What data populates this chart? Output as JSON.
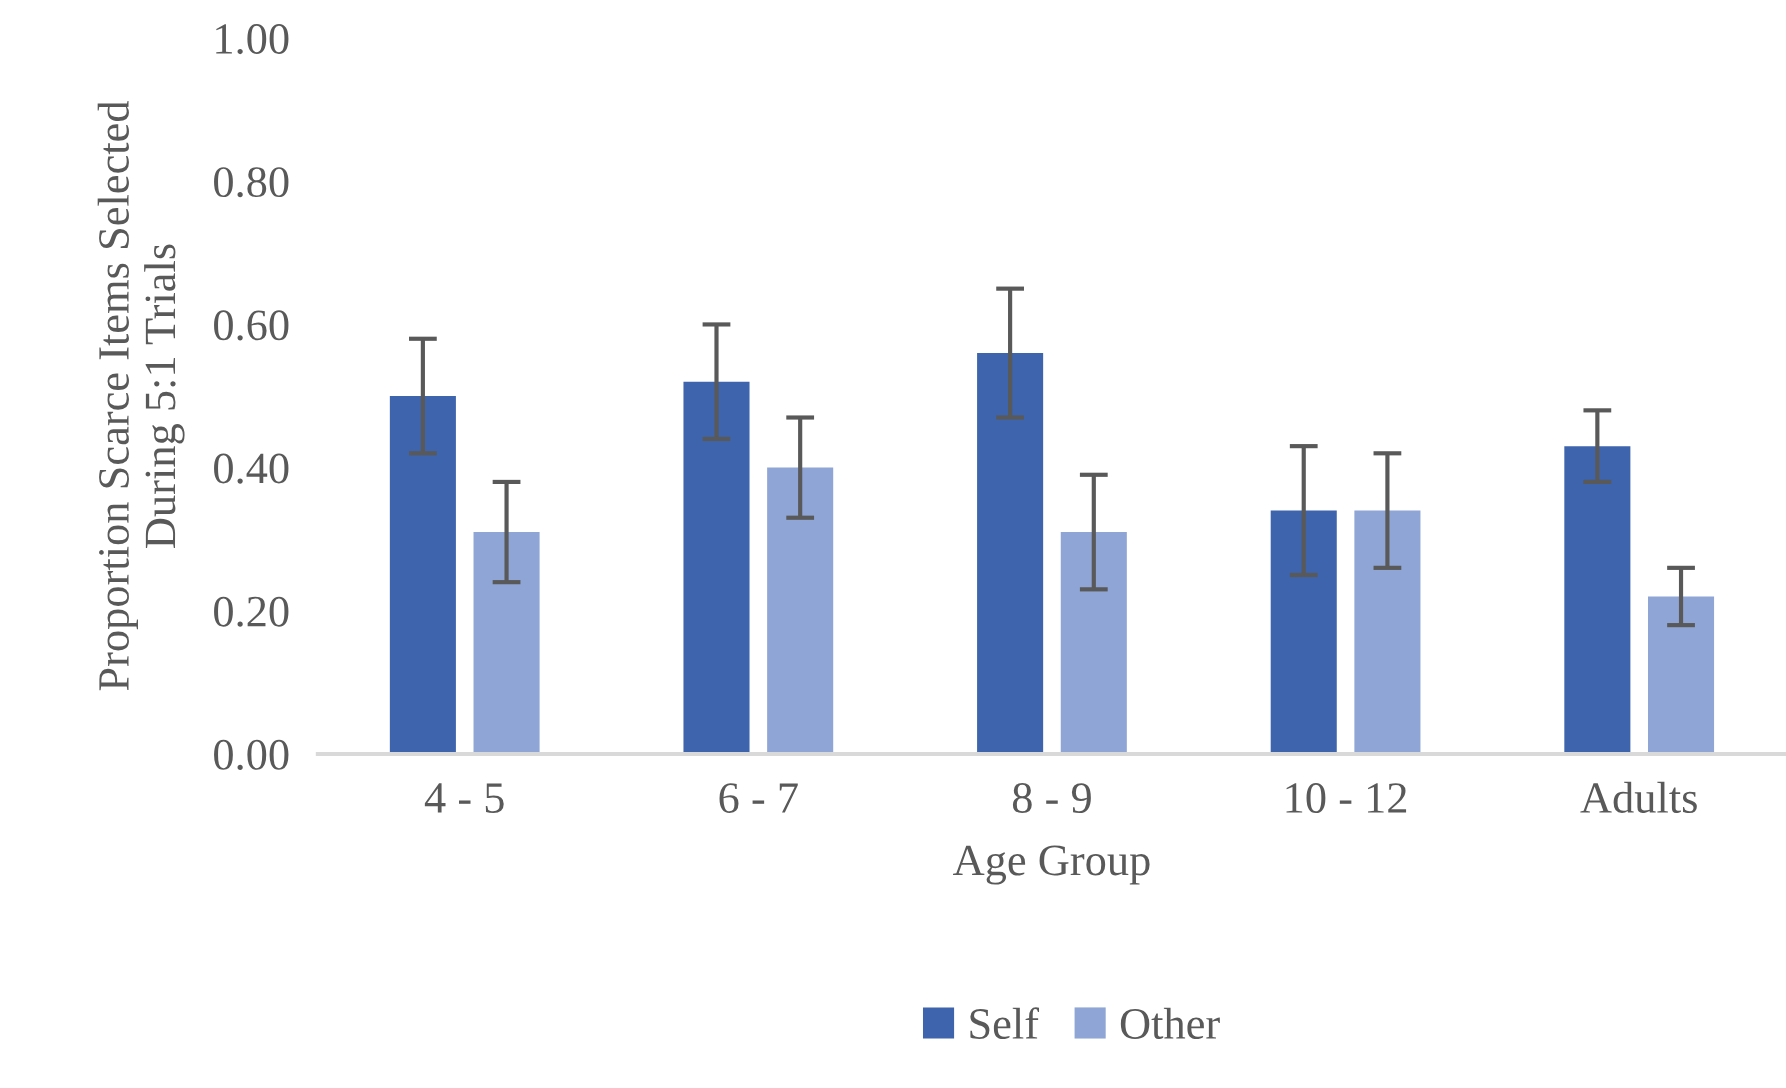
{
  "chart_data": {
    "type": "bar",
    "xlabel": "Age Group",
    "ylabel": "Proportion Scarce Items Selected\nDuring 5:1 Trials",
    "categories": [
      "4 - 5",
      "6 - 7",
      "8 - 9",
      "10 - 12",
      "Adults"
    ],
    "series": [
      {
        "name": "Self",
        "color": "#3d64ac",
        "values": [
          0.5,
          0.52,
          0.56,
          0.34,
          0.43
        ],
        "errors": [
          0.08,
          0.08,
          0.09,
          0.09,
          0.05
        ]
      },
      {
        "name": "Other",
        "color": "#8fa5d5",
        "values": [
          0.31,
          0.4,
          0.31,
          0.34,
          0.22
        ],
        "errors": [
          0.07,
          0.07,
          0.08,
          0.08,
          0.04
        ]
      }
    ],
    "ylim": [
      0,
      1
    ],
    "yticks": [
      {
        "value": 0,
        "label": "0.00"
      },
      {
        "value": 0.2,
        "label": "0.20"
      },
      {
        "value": 0.4,
        "label": "0.40"
      },
      {
        "value": 0.6,
        "label": "0.60"
      },
      {
        "value": 0.8,
        "label": "0.80"
      },
      {
        "value": 1,
        "label": "1.00"
      }
    ],
    "grid": false,
    "legend": "bottom"
  }
}
